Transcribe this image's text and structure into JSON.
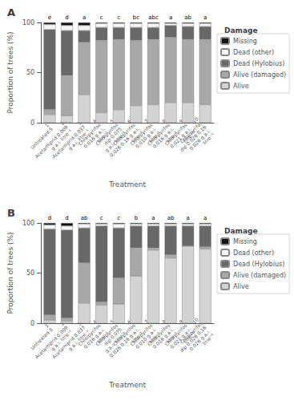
{
  "chart_data": [
    {
      "type": "bar",
      "stacked": true,
      "title": "A",
      "categories": [
        "1\nUntreated S",
        "2\nAcetamiprid 0.009\ng a.i. litre⁻¹",
        "3\nAcetamiprid 0.037\ng a.i. litre⁻¹",
        "4\nChlorpyrifos\n0.016 g a.i.\nlitre⁻¹",
        "5\nChlorpyrifos\ndip 0.075\ng a.i. litre⁻¹",
        "6\nChlorpyrifos\n0.026 0.16 g a.i.\nlitre⁻¹",
        "7\nChlorpyrifos\n0.010 g a.i.\nlitre⁻¹",
        "8\nChlorpyrifos\n0.016 g a.i.\nlitre⁻¹",
        "9\nChlorpyrifos\n0.021 g a.i.\nlitre⁻¹",
        "10\nChlorpyrifos\ndip 0.026 0.16\n0.026 g a.i.\nlitre⁻¹"
      ],
      "series": [
        {
          "name": "Alive",
          "color": "#d3d3d3",
          "values": [
            8,
            7,
            28,
            10,
            13,
            17,
            18,
            20,
            20,
            18
          ]
        },
        {
          "name": "Alive (damaged)",
          "color": "#a8a8a8",
          "values": [
            5,
            40,
            52,
            72,
            70,
            65,
            65,
            65,
            63,
            65
          ]
        },
        {
          "name": "Dead (Hylobius)",
          "color": "#686868",
          "values": [
            80,
            45,
            12,
            13,
            12,
            13,
            12,
            12,
            13,
            13
          ]
        },
        {
          "name": "Dead (other)",
          "color": "#f5f5f5",
          "values": [
            5,
            5,
            5,
            4,
            4,
            4,
            4,
            2,
            3,
            3
          ]
        },
        {
          "name": "Missing",
          "color": "#111111",
          "values": [
            2,
            3,
            3,
            1,
            1,
            1,
            1,
            1,
            1,
            1
          ]
        }
      ],
      "annotations": [
        "e",
        "d",
        "a",
        "c",
        "c",
        "bc",
        "abc",
        "a",
        "ab",
        "a"
      ],
      "xlabel": "Treatment",
      "ylabel": "Proportion of trees (%)",
      "ylim": [
        0,
        100
      ],
      "yticks": [
        0,
        50,
        100
      ],
      "grid": false,
      "legend": "right",
      "legend_title": "Damage"
    },
    {
      "type": "bar",
      "stacked": true,
      "title": "B",
      "categories": [
        "1\nUntreated S",
        "2\nAcetamiprid 0.009\ng a.i. litre⁻¹",
        "3\nAcetamiprid 0.037\ng a.i. litre⁻¹",
        "4\nChlorpyrifos\n0.016 g a.i.\nlitre⁻¹",
        "5\nChlorpyrifos\ndip 0.075\ng a.i. litre⁻¹",
        "6\nChlorpyrifos\n0.026 0.16 g a.i.\nlitre⁻¹",
        "7\nChlorpyrifos\n0.010 g a.i.\nlitre⁻¹",
        "8\nChlorpyrifos\n0.016 g a.i.\nlitre⁻¹",
        "9\nChlorpyrifos\n0.021 g a.i.\nlitre⁻¹",
        "10\nChlorpyrifos\ndip 0.026 0.16\n0.026 g a.i.\nlitre⁻¹"
      ],
      "series": [
        {
          "name": "Alive",
          "color": "#d3d3d3",
          "values": [
            3,
            2,
            20,
            18,
            19,
            47,
            73,
            65,
            77,
            74
          ]
        },
        {
          "name": "Alive (damaged)",
          "color": "#a8a8a8",
          "values": [
            5,
            3,
            40,
            3,
            26,
            28,
            2,
            3,
            0,
            2
          ]
        },
        {
          "name": "Dead (Hylobius)",
          "color": "#686868",
          "values": [
            86,
            88,
            35,
            76,
            50,
            22,
            22,
            29,
            20,
            21
          ]
        },
        {
          "name": "Dead (other)",
          "color": "#f5f5f5",
          "values": [
            4,
            4,
            4,
            2,
            4,
            2,
            2,
            2,
            2,
            2
          ]
        },
        {
          "name": "Missing",
          "color": "#111111",
          "values": [
            2,
            3,
            1,
            1,
            1,
            1,
            1,
            1,
            1,
            1
          ]
        }
      ],
      "annotations": [
        "d",
        "d",
        "ab",
        "c",
        "c",
        "b",
        "a",
        "ab",
        "a",
        "a"
      ],
      "xlabel": "Treatment",
      "ylabel": "Proportion of trees (%)",
      "ylim": [
        0,
        100
      ],
      "yticks": [
        0,
        50,
        100
      ],
      "grid": false,
      "legend": "right",
      "legend_title": "Damage"
    }
  ]
}
